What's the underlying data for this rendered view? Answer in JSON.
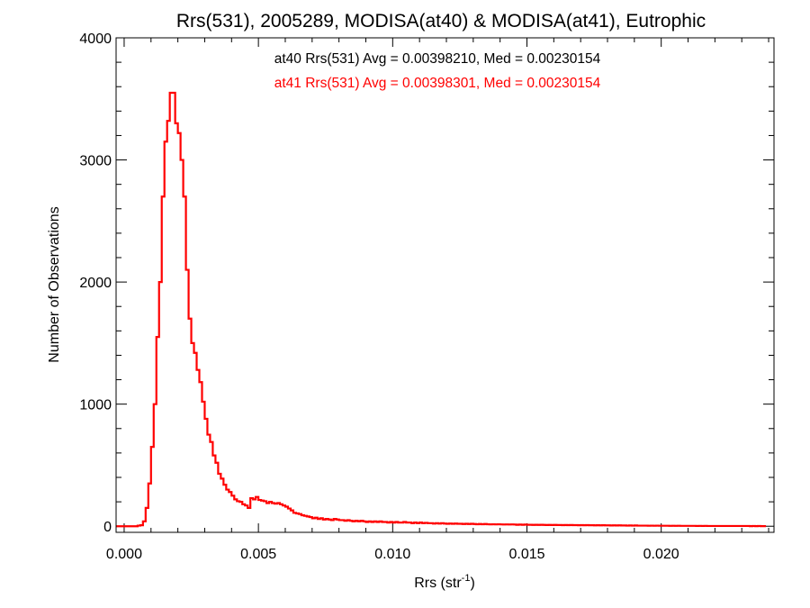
{
  "chart_data": {
    "type": "histogram",
    "title": "Rrs(531), 2005289, MODISA(at40) & MODISA(at41), Eutrophic",
    "xlabel": "Rrs (str",
    "xlabel_superscript": "-1",
    "xlabel_suffix": ")",
    "ylabel": "Number of Observations",
    "xlim": [
      -0.0003,
      0.0242
    ],
    "ylim": [
      -50,
      4000
    ],
    "xticks": [
      0.0,
      0.005,
      0.01,
      0.015,
      0.02
    ],
    "xtick_labels": [
      "0.000",
      "0.005",
      "0.010",
      "0.015",
      "0.020"
    ],
    "yticks": [
      0,
      1000,
      2000,
      3000,
      4000
    ],
    "ytick_labels": [
      "0",
      "1000",
      "2000",
      "3000",
      "4000"
    ],
    "grid": false,
    "annotations": [
      {
        "text": "at40 Rrs(531) Avg = 0.00398210, Med = 0.00230154",
        "color": "#000000"
      },
      {
        "text": "at41 Rrs(531) Avg = 0.00398301, Med = 0.00230154",
        "color": "#ff0000"
      }
    ],
    "bin_width": 0.0001,
    "series": [
      {
        "color": "#ff0000",
        "x_start": -0.0003,
        "values": [
          0,
          0,
          0,
          0,
          0,
          0,
          0,
          0,
          5,
          8,
          40,
          150,
          350,
          650,
          1000,
          1550,
          2000,
          2700,
          3150,
          3320,
          3550,
          3550,
          3300,
          3220,
          3000,
          2700,
          2100,
          1700,
          1500,
          1420,
          1280,
          1180,
          1020,
          880,
          750,
          690,
          580,
          520,
          430,
          390,
          340,
          300,
          280,
          250,
          220,
          205,
          200,
          180,
          170,
          150,
          230,
          220,
          240,
          215,
          210,
          205,
          190,
          200,
          190,
          185,
          190,
          180,
          170,
          160,
          145,
          130,
          110,
          105,
          100,
          90,
          85,
          80,
          75,
          65,
          70,
          60,
          65,
          55,
          60,
          55,
          50,
          60,
          55,
          50,
          50,
          45,
          50,
          45,
          40,
          45,
          40,
          45,
          40,
          35,
          40,
          35,
          40,
          35,
          40,
          35,
          35,
          30,
          35,
          30,
          35,
          30,
          30,
          35,
          30,
          30,
          25,
          30,
          25,
          30,
          25,
          28,
          25,
          25,
          22,
          25,
          22,
          25,
          22,
          20,
          22,
          20,
          22,
          20,
          20,
          18,
          20,
          18,
          20,
          18,
          16,
          18,
          16,
          18,
          16,
          15,
          16,
          15,
          16,
          15,
          14,
          15,
          14,
          15,
          14,
          12,
          14,
          12,
          14,
          12,
          12,
          11,
          12,
          11,
          12,
          11,
          10,
          11,
          10,
          11,
          10,
          10,
          9,
          10,
          9,
          10,
          9,
          9,
          8,
          9,
          8,
          9,
          8,
          8,
          7,
          8,
          7,
          8,
          7,
          7,
          6,
          7,
          6,
          7,
          6,
          6,
          5,
          6,
          5,
          6,
          5,
          5,
          5,
          5,
          4,
          5,
          4,
          5,
          4,
          4,
          4,
          4,
          3,
          4,
          3,
          4,
          3,
          3,
          3,
          3,
          3,
          3,
          2,
          3,
          2,
          3,
          2,
          2,
          2,
          2,
          2,
          2,
          2,
          2,
          2,
          2,
          2,
          2,
          2,
          2,
          2,
          2,
          1,
          2,
          1,
          2,
          1,
          1
        ]
      }
    ]
  }
}
